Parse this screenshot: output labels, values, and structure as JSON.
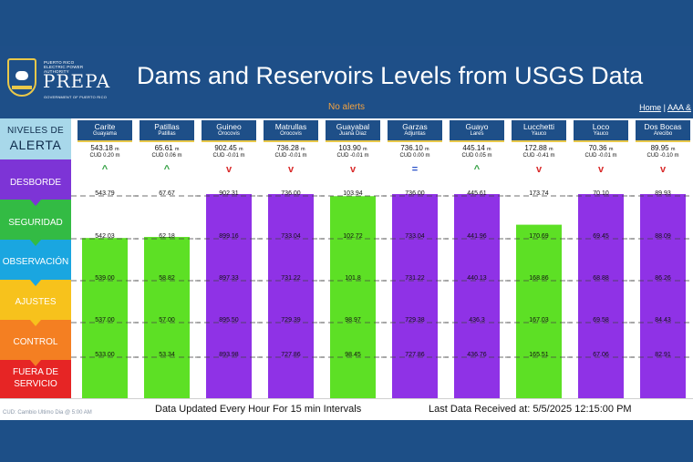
{
  "header": {
    "logo": {
      "top_text": "PUERTO RICO\nELECTRIC POWER AUTHORITY",
      "main_text": "PREPA",
      "sub_text": "GOVERNMENT OF PUERTO RICO"
    },
    "title": "Dams and Reservoirs Levels from USGS Data",
    "alerts": "No alerts",
    "links": {
      "home": "Home",
      "separator": "|",
      "next": "AAA &"
    }
  },
  "levels_panel": {
    "header_line1": "NIVELES DE",
    "header_line2": "ALERTA",
    "levels": [
      {
        "label": "DESBORDE",
        "color": "#7d34d6"
      },
      {
        "label": "SEGURIDAD",
        "color": "#33bb44"
      },
      {
        "label": "OBSERVACIÓN",
        "color": "#1aa6e0"
      },
      {
        "label": "AJUSTES",
        "color": "#f7c21c"
      },
      {
        "label": "CONTROL",
        "color": "#f47f22"
      },
      {
        "label_line1": "FUERA DE",
        "label_line2": "SERVICIO",
        "color": "#e62525"
      }
    ]
  },
  "colors": {
    "purple": "#8f32e6",
    "green": "#5de025",
    "up": "#2e9e3e",
    "down": "#d92b2b",
    "flat": "#2a52c9"
  },
  "reservoirs": [
    {
      "name": "Carite",
      "municipality": "Guayama",
      "level": "543.18",
      "unit": "m",
      "cud": "CUD 0.20 m",
      "trend": "up",
      "trend_symbol": "^",
      "color": "green",
      "ticks": [
        "543.79",
        "542.03",
        "539.00",
        "537.00",
        "533.00"
      ],
      "fill_fraction": 0.785
    },
    {
      "name": "Patillas",
      "municipality": "Patillas",
      "level": "65.61",
      "unit": "m",
      "cud": "CUD 0.06 m",
      "trend": "up",
      "trend_symbol": "^",
      "color": "green",
      "ticks": [
        "67.67",
        "62.18",
        "58.82",
        "57.00",
        "53.34"
      ],
      "fill_fraction": 0.79
    },
    {
      "name": "Guineo",
      "municipality": "Orocovis",
      "level": "902.45",
      "unit": "m",
      "cud": "CUD -0.01 m",
      "trend": "down",
      "trend_symbol": "v",
      "color": "purple",
      "ticks": [
        "902.31",
        "899.16",
        "897.33",
        "895.50",
        "893.98"
      ],
      "fill_fraction": 1.0
    },
    {
      "name": "Matrullas",
      "municipality": "Orocovis",
      "level": "736.28",
      "unit": "m",
      "cud": "CUD -0.01 m",
      "trend": "down",
      "trend_symbol": "v",
      "color": "purple",
      "ticks": [
        "736.00",
        "733.04",
        "731.22",
        "729.39",
        "727.86"
      ],
      "fill_fraction": 1.0
    },
    {
      "name": "Guayabal",
      "municipality": "Juana Diaz",
      "level": "103.90",
      "unit": "m",
      "cud": "CUD -0.01 m",
      "trend": "down",
      "trend_symbol": "v",
      "color": "green",
      "ticks": [
        "103.94",
        "102.72",
        "101.8",
        "98.97",
        "98.45"
      ],
      "fill_fraction": 0.99
    },
    {
      "name": "Garzas",
      "municipality": "Adjuntas",
      "level": "736.10",
      "unit": "m",
      "cud": "CUD 0.00 m",
      "trend": "flat",
      "trend_symbol": "=",
      "color": "purple",
      "ticks": [
        "736.00",
        "733.04",
        "731.22",
        "729.38",
        "727.86"
      ],
      "fill_fraction": 1.0
    },
    {
      "name": "Guayo",
      "municipality": "Lares",
      "level": "445.14",
      "unit": "m",
      "cud": "CUD 0.05 m",
      "trend": "up",
      "trend_symbol": "^",
      "color": "purple",
      "ticks": [
        "445.61",
        "441.96",
        "440.13",
        "436.3",
        "436.76"
      ],
      "fill_fraction": 1.0
    },
    {
      "name": "Lucchetti",
      "municipality": "Yauco",
      "level": "172.88",
      "unit": "m",
      "cud": "CUD -0.41 m",
      "trend": "down",
      "trend_symbol": "v",
      "color": "green",
      "ticks": [
        "173.74",
        "170.69",
        "168.86",
        "167.03",
        "165.51"
      ],
      "fill_fraction": 0.85
    },
    {
      "name": "Loco",
      "municipality": "Yauco",
      "level": "70.36",
      "unit": "m",
      "cud": "CUD -0.01 m",
      "trend": "down",
      "trend_symbol": "v",
      "color": "purple",
      "ticks": [
        "70.10",
        "69.45",
        "68.88",
        "69.58",
        "67.06"
      ],
      "fill_fraction": 1.0
    },
    {
      "name": "Dos Bocas",
      "municipality": "Arecibo",
      "level": "89.95",
      "unit": "m",
      "cud": "CUD -0.10 m",
      "trend": "down",
      "trend_symbol": "v",
      "color": "purple",
      "ticks": [
        "89.93",
        "88.09",
        "86.26",
        "84.43",
        "82.91"
      ],
      "fill_fraction": 1.0
    }
  ],
  "footer": {
    "note": "CUD: Cambio Ultimo Dia @ 5:00 AM",
    "updated": "Data Updated Every Hour For 15 min Intervals",
    "received": "Last Data Received at:  5/5/2025 12:15:00 PM"
  }
}
